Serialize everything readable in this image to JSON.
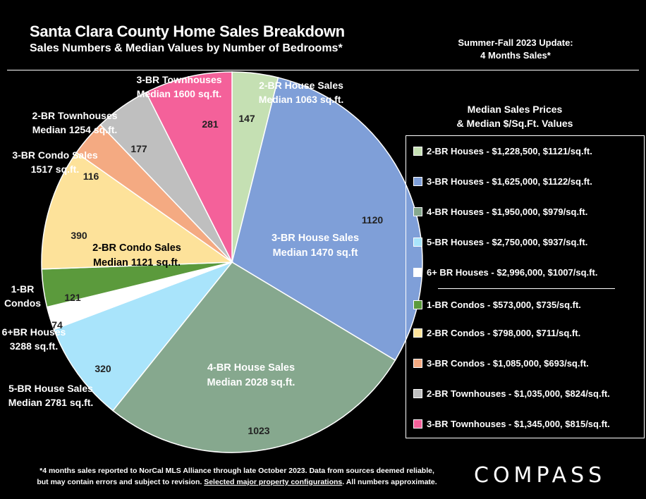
{
  "header": {
    "title": "Santa Clara County Home Sales Breakdown",
    "subtitle": "Sales Numbers & Median Values by Number of Bedrooms*",
    "update_line1": "Summer-Fall 2023 Update:",
    "update_line2": "4 Months Sales*"
  },
  "legend": {
    "title_line1": "Median Sales Prices",
    "title_line2": "& Median $/Sq.Ft. Values",
    "items": [
      {
        "label": "2-BR Houses - $1,228,500, $1121/sq.ft.",
        "color": "#c5e0b3"
      },
      {
        "label": "3-BR Houses - $1,625,000, $1122/sq.ft.",
        "color": "#7f9fd8"
      },
      {
        "label": "4-BR Houses - $1,950,000, $979/sq.ft.",
        "color": "#86a88e"
      },
      {
        "label": "5-BR Houses - $2,750,000, $937/sq.ft.",
        "color": "#a9e4fb"
      },
      {
        "label": "6+ BR Houses - $2,996,000, $1007/sq.ft.",
        "color": "#ffffff"
      },
      {
        "label": "1-BR Condos - $573,000, $735/sq.ft.",
        "color": "#5b9a3c"
      },
      {
        "label": "2-BR Condos - $798,000, $711/sq.ft.",
        "color": "#fde29a"
      },
      {
        "label": "3-BR Condos - $1,085,000, $693/sq.ft.",
        "color": "#f4aa82"
      },
      {
        "label": "2-BR Townhouses - $1,035,000, $824/sq.ft.",
        "color": "#bfbfbf"
      },
      {
        "label": "3-BR Townhouses - $1,345,000, $815/sq.ft.",
        "color": "#f4619a"
      }
    ]
  },
  "chart_data": {
    "type": "pie",
    "title": "Santa Clara County Home Sales Breakdown",
    "subtitle": "Sales Numbers & Median Values by Number of Bedrooms*",
    "start": "12 o'clock",
    "direction": "clockwise",
    "slices": [
      {
        "value": 147,
        "color": "#c5e0b3",
        "ext_label": [
          "2-BR House Sales",
          "Median 1063 sq.ft."
        ]
      },
      {
        "value": 1120,
        "color": "#7f9fd8",
        "inner_label": [
          "3-BR House Sales",
          "Median 1470 sq.ft"
        ]
      },
      {
        "value": 1023,
        "color": "#86a88e",
        "inner_label": [
          "4-BR House Sales",
          "Median 2028 sq.ft."
        ]
      },
      {
        "value": 320,
        "color": "#a9e4fb",
        "ext_label": [
          "5-BR House Sales",
          "Median 2781 sq.ft."
        ]
      },
      {
        "value": 74,
        "color": "#ffffff",
        "ext_label": [
          "6+BR Houses",
          "3288 sq.ft."
        ]
      },
      {
        "value": 121,
        "color": "#5b9a3c",
        "ext_label": [
          "1-BR",
          "Condos"
        ]
      },
      {
        "value": 390,
        "color": "#fde29a",
        "inner_label": [
          "2-BR Condo Sales",
          "Median 1121 sq.ft."
        ]
      },
      {
        "value": 116,
        "color": "#f4aa82",
        "ext_label": [
          "3-BR Condo Sales",
          "1517 sq.ft."
        ]
      },
      {
        "value": 177,
        "color": "#bfbfbf",
        "ext_label": [
          "2-BR Townhouses",
          "Median 1254 sq.ft."
        ]
      },
      {
        "value": 281,
        "color": "#f4619a",
        "ext_label": [
          "3-BR Townhouses",
          "Median 1600 sq.ft."
        ]
      }
    ]
  },
  "footer": {
    "line1": "*4 months sales reported to NorCal MLS Alliance through late October 2023. Data from sources deemed reliable,",
    "line2_pre": "but may contain errors and subject to revision. ",
    "line2_link": "Selected major property configurations",
    "line2_post": ". All numbers approximate.",
    "logo": "COMPASS"
  }
}
